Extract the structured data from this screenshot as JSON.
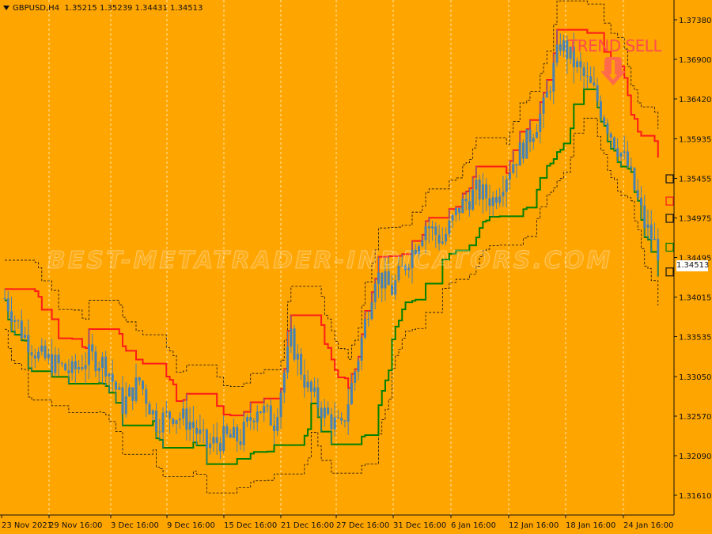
{
  "symbol": "GBPUSD,H4",
  "ohlc": "1.35215 1.35239 1.34431 1.34513",
  "signal_text": "TREND SELL",
  "watermark": "BEST-METATRADER-INDICATORS.COM",
  "current_price": "1.34513",
  "colors": {
    "background": "#FFA500",
    "upper_band": "#FF1A1A",
    "lower_band": "#008000",
    "candles": "#4682B4",
    "signal": "#FF4C4C"
  },
  "chart_data": {
    "type": "line",
    "title": "",
    "xlabel": "",
    "ylabel": "",
    "y_ticks": [
      "1.37380",
      "1.36900",
      "1.36420",
      "1.35935",
      "1.35455",
      "1.34975",
      "1.34495",
      "1.34015",
      "1.33535",
      "1.33050",
      "1.32570",
      "1.32090",
      "1.31610"
    ],
    "x_ticks": [
      "23 Nov 2021",
      "29 Nov 16:00",
      "3 Dec 16:00",
      "9 Dec 16:00",
      "15 Dec 16:00",
      "21 Dec 16:00",
      "27 Dec 16:00",
      "31 Dec 16:00",
      "6 Jan 16:00",
      "12 Jan 16:00",
      "18 Jan 16:00",
      "24 Jan 16:00"
    ],
    "ylim": [
      1.3137,
      1.3762
    ],
    "grid": true,
    "series": [
      {
        "name": "",
        "values": [
          1.34,
          1.336,
          1.333,
          1.332,
          1.331,
          1.333,
          1.332,
          1.327,
          1.33,
          1.325,
          1.326,
          1.325,
          1.322,
          1.323,
          1.323,
          1.327,
          1.325,
          1.335,
          1.329,
          1.326,
          1.324,
          1.333,
          1.343,
          1.341,
          1.345,
          1.349,
          1.347,
          1.351,
          1.353,
          1.352,
          1.356,
          1.359,
          1.363,
          1.371,
          1.368,
          1.365,
          1.36,
          1.356,
          1.349,
          1.345
        ]
      }
    ]
  }
}
